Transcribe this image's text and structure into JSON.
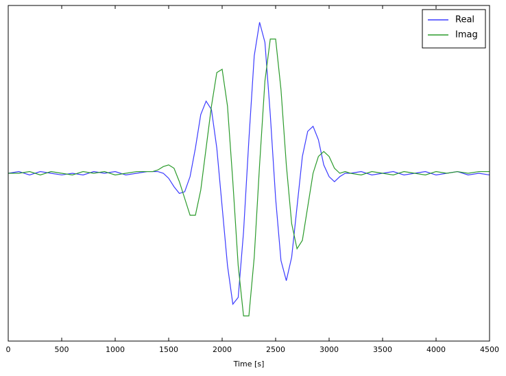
{
  "chart_data": {
    "type": "line",
    "xlabel": "Time [s]",
    "x": [
      0,
      100,
      200,
      300,
      400,
      500,
      600,
      700,
      800,
      900,
      1000,
      1100,
      1200,
      1300,
      1350,
      1400,
      1450,
      1500,
      1550,
      1600,
      1650,
      1700,
      1750,
      1800,
      1850,
      1900,
      1950,
      2000,
      2050,
      2100,
      2150,
      2200,
      2250,
      2300,
      2350,
      2400,
      2450,
      2500,
      2550,
      2600,
      2650,
      2700,
      2750,
      2800,
      2850,
      2900,
      2950,
      3000,
      3050,
      3100,
      3150,
      3200,
      3300,
      3400,
      3500,
      3600,
      3700,
      3800,
      3900,
      4000,
      4100,
      4200,
      4300,
      4400,
      4500
    ],
    "series": [
      {
        "name": "Real",
        "color": "#3a3aff",
        "values": [
          0.0,
          0.01,
          -0.01,
          0.01,
          0.0,
          -0.01,
          0.0,
          -0.01,
          0.01,
          0.0,
          0.01,
          -0.01,
          0.0,
          0.01,
          0.01,
          0.01,
          0.0,
          -0.03,
          -0.08,
          -0.12,
          -0.11,
          -0.02,
          0.15,
          0.35,
          0.43,
          0.38,
          0.15,
          -0.2,
          -0.55,
          -0.78,
          -0.74,
          -0.35,
          0.2,
          0.7,
          0.9,
          0.78,
          0.35,
          -0.15,
          -0.52,
          -0.64,
          -0.5,
          -0.2,
          0.1,
          0.25,
          0.28,
          0.2,
          0.05,
          -0.02,
          -0.05,
          -0.02,
          0.0,
          0.0,
          0.01,
          -0.01,
          0.0,
          0.01,
          -0.01,
          0.0,
          0.01,
          -0.01,
          0.0,
          0.01,
          -0.01,
          0.0,
          -0.01
        ]
      },
      {
        "name": "Imag",
        "color": "#2a9a2a",
        "values": [
          0.0,
          0.0,
          0.01,
          -0.01,
          0.01,
          0.0,
          -0.01,
          0.01,
          0.0,
          0.01,
          -0.01,
          0.0,
          0.01,
          0.01,
          0.01,
          0.02,
          0.04,
          0.05,
          0.03,
          -0.05,
          -0.15,
          -0.25,
          -0.25,
          -0.1,
          0.15,
          0.4,
          0.6,
          0.62,
          0.4,
          -0.05,
          -0.55,
          -0.85,
          -0.85,
          -0.5,
          0.05,
          0.55,
          0.8,
          0.8,
          0.5,
          0.05,
          -0.3,
          -0.45,
          -0.4,
          -0.2,
          0.0,
          0.1,
          0.13,
          0.1,
          0.03,
          0.0,
          0.01,
          0.0,
          -0.01,
          0.01,
          0.0,
          -0.01,
          0.01,
          0.0,
          -0.01,
          0.01,
          0.0,
          0.01,
          0.0,
          0.01,
          0.01
        ]
      }
    ],
    "xlim": [
      0,
      4500
    ],
    "xticks": [
      0,
      500,
      1000,
      1500,
      2000,
      2500,
      3000,
      3500,
      4000,
      4500
    ],
    "ylim": [
      -1,
      1
    ],
    "legend": "upper-right"
  }
}
